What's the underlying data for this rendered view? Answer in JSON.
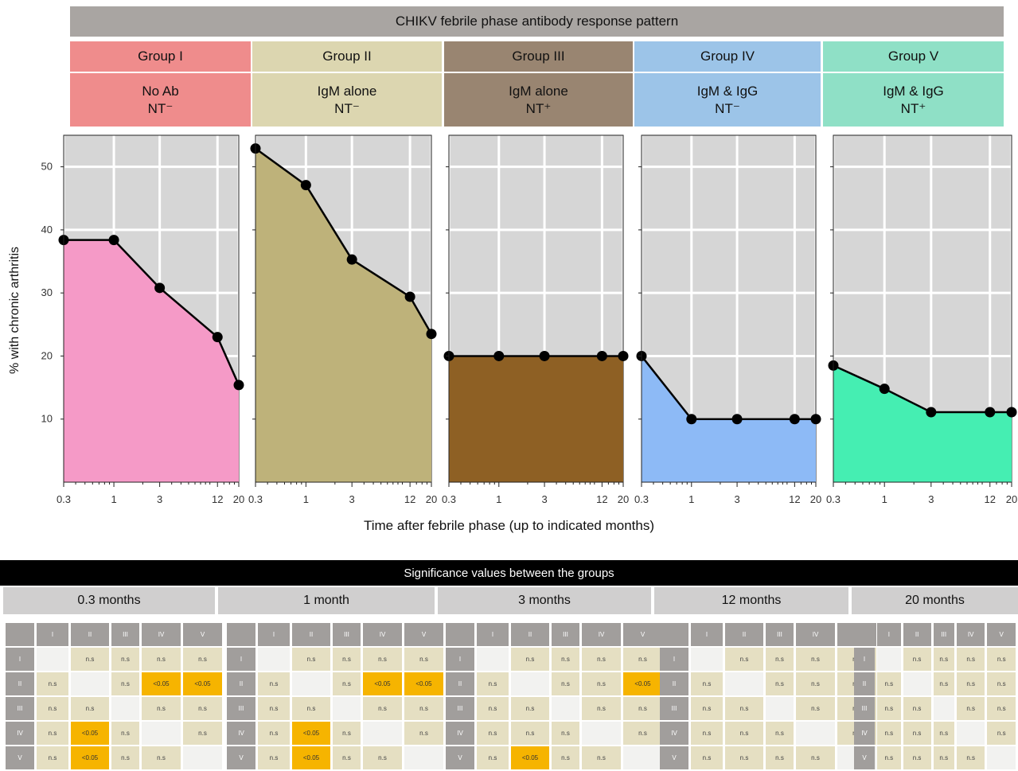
{
  "title": "CHIKV febrile phase antibody response pattern",
  "groups": [
    {
      "name": "Group I",
      "line1": "No Ab",
      "line2": "NT⁻",
      "header_color": "#ef8c8c",
      "fill": "#f59ac7"
    },
    {
      "name": "Group II",
      "line1": "IgM alone",
      "line2": "NT⁻",
      "header_color": "#dcd6b0",
      "fill": "#beb27a"
    },
    {
      "name": "Group III",
      "line1": "IgM alone",
      "line2": "NT⁺",
      "header_color": "#998571",
      "fill": "#8e6024"
    },
    {
      "name": "Group IV",
      "line1": "IgM & IgG",
      "line2": "NT⁻",
      "header_color": "#9cc4e8",
      "fill": "#8dbaf6"
    },
    {
      "name": "Group V",
      "line1": "IgM & IgG",
      "line2": "NT⁺",
      "header_color": "#8fe0c6",
      "fill": "#45eeb2"
    }
  ],
  "chart_data": {
    "type": "area",
    "ylabel": "% with chronic arthritis",
    "xlabel": "Time after febrile phase (up to indicated months)",
    "x_scale": "log",
    "x_ticks": [
      "0.3",
      "1",
      "3",
      "12",
      "20"
    ],
    "y_ticks": [
      10,
      20,
      30,
      40,
      50
    ],
    "ylim": [
      0,
      55
    ],
    "x": [
      0.3,
      1,
      3,
      12,
      20
    ],
    "series": [
      {
        "name": "Group I",
        "values": [
          38.4,
          38.4,
          30.8,
          23.0,
          15.4
        ]
      },
      {
        "name": "Group II",
        "values": [
          52.9,
          47.1,
          35.3,
          29.4,
          23.5
        ]
      },
      {
        "name": "Group III",
        "values": [
          20.0,
          20.0,
          20.0,
          20.0,
          20.0
        ]
      },
      {
        "name": "Group IV",
        "values": [
          20.0,
          10.0,
          10.0,
          10.0,
          10.0
        ]
      },
      {
        "name": "Group V",
        "values": [
          18.5,
          14.8,
          11.1,
          11.1,
          11.1
        ]
      }
    ]
  },
  "significance": {
    "title": "Significance values between the groups",
    "headers": [
      "I",
      "II",
      "III",
      "IV",
      "V"
    ],
    "tables": [
      {
        "label": "0.3 months",
        "rows": [
          [
            "",
            "n.s",
            "n.s",
            "n.s",
            "n.s"
          ],
          [
            "n.s",
            "",
            "n.s",
            "<0.05",
            "<0.05"
          ],
          [
            "n.s",
            "n.s",
            "",
            "n.s",
            "n.s"
          ],
          [
            "n.s",
            "<0.05",
            "n.s",
            "",
            "n.s"
          ],
          [
            "n.s",
            "<0.05",
            "n.s",
            "n.s",
            ""
          ]
        ]
      },
      {
        "label": "1 month",
        "rows": [
          [
            "",
            "n.s",
            "n.s",
            "n.s",
            "n.s"
          ],
          [
            "n.s",
            "",
            "n.s",
            "<0.05",
            "<0.05"
          ],
          [
            "n.s",
            "n.s",
            "",
            "n.s",
            "n.s"
          ],
          [
            "n.s",
            "<0.05",
            "n.s",
            "",
            "n.s"
          ],
          [
            "n.s",
            "<0.05",
            "n.s",
            "n.s",
            ""
          ]
        ]
      },
      {
        "label": "3 months",
        "rows": [
          [
            "",
            "n.s",
            "n.s",
            "n.s",
            "n.s"
          ],
          [
            "n.s",
            "",
            "n.s",
            "n.s",
            "<0.05"
          ],
          [
            "n.s",
            "n.s",
            "",
            "n.s",
            "n.s"
          ],
          [
            "n.s",
            "n.s",
            "n.s",
            "",
            "n.s"
          ],
          [
            "n.s",
            "<0.05",
            "n.s",
            "n.s",
            ""
          ]
        ]
      },
      {
        "label": "12 months",
        "rows": [
          [
            "",
            "n.s",
            "n.s",
            "n.s",
            "n.s"
          ],
          [
            "n.s",
            "",
            "n.s",
            "n.s",
            "n.s"
          ],
          [
            "n.s",
            "n.s",
            "",
            "n.s",
            "n.s"
          ],
          [
            "n.s",
            "n.s",
            "n.s",
            "",
            "n.s"
          ],
          [
            "n.s",
            "n.s",
            "n.s",
            "n.s",
            ""
          ]
        ]
      },
      {
        "label": "20 months",
        "rows": [
          [
            "",
            "n.s",
            "n.s",
            "n.s",
            "n.s"
          ],
          [
            "n.s",
            "",
            "n.s",
            "n.s",
            "n.s"
          ],
          [
            "n.s",
            "n.s",
            "",
            "n.s",
            "n.s"
          ],
          [
            "n.s",
            "n.s",
            "n.s",
            "",
            "n.s"
          ],
          [
            "n.s",
            "n.s",
            "n.s",
            "n.s",
            ""
          ]
        ]
      }
    ]
  }
}
